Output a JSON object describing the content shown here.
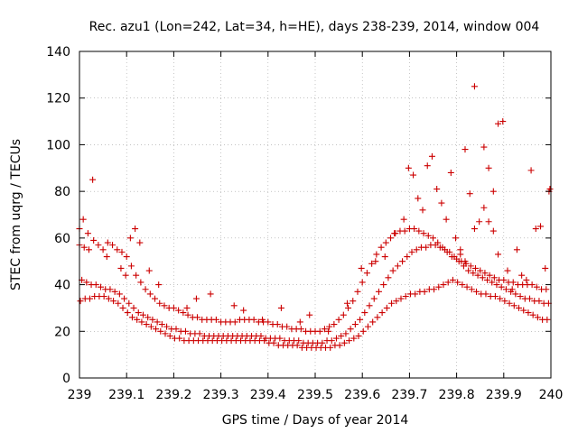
{
  "chart_data": {
    "type": "scatter",
    "title": "Rec. azu1 (Lon=242, Lat=34, h=HE), days 238-239, 2014, window 004",
    "xlabel": "GPS time / Days of year 2014",
    "ylabel": "STEC from uqrg / TECUs",
    "xlim": [
      239.0,
      240.0
    ],
    "ylim": [
      0,
      140
    ],
    "xticks": [
      239,
      239.1,
      239.2,
      239.3,
      239.4,
      239.5,
      239.6,
      239.7,
      239.8,
      239.9,
      240
    ],
    "xtick_labels": [
      "239",
      "239.1",
      "239.2",
      "239.3",
      "239.4",
      "239.5",
      "239.6",
      "239.7",
      "239.8",
      "239.9",
      "240"
    ],
    "yticks": [
      0,
      20,
      40,
      60,
      80,
      100,
      120,
      140
    ],
    "ytick_labels": [
      "0",
      "20",
      "40",
      "60",
      "80",
      "100",
      "120",
      "140"
    ],
    "grid": true,
    "marker": "plus",
    "color": "#cc0000",
    "series": [
      {
        "name": "",
        "x": [
          239.0,
          239.01,
          239.02,
          239.03,
          239.04,
          239.05,
          239.06,
          239.07,
          239.08,
          239.09,
          239.1,
          239.11,
          239.12,
          239.13,
          239.14,
          239.15,
          239.16,
          239.17,
          239.18,
          239.19,
          239.2,
          239.21,
          239.22,
          239.23,
          239.24,
          239.25,
          239.26,
          239.27,
          239.28,
          239.29,
          239.3,
          239.31,
          239.32,
          239.33,
          239.34,
          239.35,
          239.36,
          239.37,
          239.38,
          239.39,
          239.4,
          239.41,
          239.42,
          239.43,
          239.44,
          239.45,
          239.46,
          239.47,
          239.48,
          239.49,
          239.5,
          239.51,
          239.52,
          239.53,
          239.54,
          239.55,
          239.56,
          239.57,
          239.58,
          239.59,
          239.6,
          239.61,
          239.62,
          239.63,
          239.64,
          239.65,
          239.66,
          239.67,
          239.68,
          239.69,
          239.7,
          239.71,
          239.72,
          239.73,
          239.74,
          239.75,
          239.76,
          239.77,
          239.78,
          239.79,
          239.8,
          239.81,
          239.82,
          239.83,
          239.84,
          239.85,
          239.86,
          239.87,
          239.88,
          239.89,
          239.9,
          239.91,
          239.92,
          239.93,
          239.94,
          239.95,
          239.96,
          239.97,
          239.98,
          239.99
        ],
        "y": [
          57,
          56,
          55,
          59,
          57,
          55,
          58,
          57,
          55,
          54,
          52,
          48,
          44,
          41,
          38,
          36,
          34,
          32,
          31,
          30,
          30,
          29,
          28,
          27,
          26,
          26,
          25,
          25,
          25,
          25,
          24,
          24,
          24,
          24,
          25,
          25,
          25,
          25,
          24,
          24,
          24,
          23,
          23,
          22,
          22,
          21,
          21,
          21,
          20,
          20,
          20,
          20,
          21,
          22,
          23,
          25,
          27,
          30,
          33,
          37,
          41,
          45,
          49,
          53,
          56,
          58,
          60,
          62,
          63,
          63,
          64,
          64,
          63,
          62,
          61,
          60,
          58,
          56,
          54,
          52,
          51,
          50,
          49,
          48,
          47,
          46,
          45,
          44,
          43,
          42,
          42,
          41,
          41,
          40,
          40,
          40,
          40,
          39,
          38,
          38
        ]
      },
      {
        "name": "",
        "x": [
          239.005,
          239.015,
          239.025,
          239.035,
          239.045,
          239.055,
          239.065,
          239.075,
          239.085,
          239.095,
          239.105,
          239.115,
          239.125,
          239.135,
          239.145,
          239.155,
          239.165,
          239.175,
          239.185,
          239.195,
          239.205,
          239.215,
          239.225,
          239.235,
          239.245,
          239.255,
          239.265,
          239.275,
          239.285,
          239.295,
          239.305,
          239.315,
          239.325,
          239.335,
          239.345,
          239.355,
          239.365,
          239.375,
          239.385,
          239.395,
          239.405,
          239.415,
          239.425,
          239.435,
          239.445,
          239.455,
          239.465,
          239.475,
          239.485,
          239.495,
          239.505,
          239.515,
          239.525,
          239.535,
          239.545,
          239.555,
          239.565,
          239.575,
          239.585,
          239.595,
          239.605,
          239.615,
          239.625,
          239.635,
          239.645,
          239.655,
          239.665,
          239.675,
          239.685,
          239.695,
          239.705,
          239.715,
          239.725,
          239.735,
          239.745,
          239.755,
          239.765,
          239.775,
          239.785,
          239.795,
          239.805,
          239.815,
          239.825,
          239.835,
          239.845,
          239.855,
          239.865,
          239.875,
          239.885,
          239.895,
          239.905,
          239.915,
          239.925,
          239.935,
          239.945,
          239.955,
          239.965,
          239.975,
          239.985,
          239.995
        ],
        "y": [
          42,
          41,
          40,
          40,
          39,
          38,
          38,
          37,
          36,
          34,
          32,
          30,
          28,
          27,
          26,
          25,
          24,
          23,
          22,
          21,
          21,
          20,
          20,
          19,
          19,
          19,
          18,
          18,
          18,
          18,
          18,
          18,
          18,
          18,
          18,
          18,
          18,
          18,
          18,
          17,
          17,
          17,
          17,
          16,
          16,
          16,
          16,
          15,
          15,
          15,
          15,
          15,
          16,
          16,
          17,
          18,
          19,
          21,
          23,
          25,
          28,
          31,
          34,
          37,
          40,
          43,
          46,
          48,
          50,
          52,
          54,
          55,
          56,
          56,
          57,
          57,
          56,
          55,
          54,
          52,
          50,
          48,
          46,
          45,
          44,
          43,
          42,
          41,
          40,
          39,
          38,
          37,
          36,
          35,
          34,
          34,
          33,
          33,
          32,
          32
        ]
      },
      {
        "name": "",
        "x": [
          239.002,
          239.012,
          239.022,
          239.032,
          239.042,
          239.052,
          239.062,
          239.072,
          239.082,
          239.092,
          239.102,
          239.112,
          239.122,
          239.132,
          239.142,
          239.152,
          239.162,
          239.172,
          239.182,
          239.192,
          239.202,
          239.212,
          239.222,
          239.232,
          239.242,
          239.252,
          239.262,
          239.272,
          239.282,
          239.292,
          239.302,
          239.312,
          239.322,
          239.332,
          239.342,
          239.352,
          239.362,
          239.372,
          239.382,
          239.392,
          239.402,
          239.412,
          239.422,
          239.432,
          239.442,
          239.452,
          239.462,
          239.472,
          239.482,
          239.492,
          239.502,
          239.512,
          239.522,
          239.532,
          239.542,
          239.552,
          239.562,
          239.572,
          239.582,
          239.592,
          239.602,
          239.612,
          239.622,
          239.632,
          239.642,
          239.652,
          239.662,
          239.672,
          239.682,
          239.692,
          239.702,
          239.712,
          239.722,
          239.732,
          239.742,
          239.752,
          239.762,
          239.772,
          239.782,
          239.792,
          239.802,
          239.812,
          239.822,
          239.832,
          239.842,
          239.852,
          239.862,
          239.872,
          239.882,
          239.892,
          239.902,
          239.912,
          239.922,
          239.932,
          239.942,
          239.952,
          239.962,
          239.972,
          239.982,
          239.992
        ],
        "y": [
          33,
          34,
          34,
          35,
          35,
          35,
          34,
          33,
          32,
          30,
          28,
          26,
          25,
          24,
          23,
          22,
          21,
          20,
          19,
          18,
          17,
          17,
          16,
          16,
          16,
          16,
          16,
          16,
          16,
          16,
          16,
          16,
          16,
          16,
          16,
          16,
          16,
          16,
          16,
          16,
          15,
          15,
          14,
          14,
          14,
          14,
          14,
          13,
          13,
          13,
          13,
          13,
          13,
          13,
          14,
          14,
          15,
          16,
          17,
          18,
          20,
          22,
          24,
          26,
          28,
          30,
          32,
          33,
          34,
          35,
          36,
          36,
          37,
          37,
          38,
          38,
          39,
          40,
          41,
          42,
          41,
          40,
          39,
          38,
          37,
          36,
          36,
          35,
          35,
          34,
          33,
          32,
          31,
          30,
          29,
          28,
          27,
          26,
          25,
          25
        ]
      },
      {
        "name": "",
        "x": [
          239.0,
          239.008,
          239.018,
          239.028,
          239.058,
          239.088,
          239.098,
          239.108,
          239.118,
          239.128,
          239.148,
          239.168,
          239.228,
          239.248,
          239.278,
          239.328,
          239.348,
          239.388,
          239.428,
          239.468,
          239.488,
          239.528,
          239.568,
          239.598,
          239.628,
          239.648,
          239.668,
          239.688,
          239.698,
          239.708,
          239.718,
          239.728,
          239.738,
          239.748,
          239.758,
          239.768,
          239.778,
          239.788,
          239.798,
          239.808,
          239.818,
          239.828,
          239.838,
          239.848,
          239.858,
          239.868,
          239.878,
          239.888,
          239.898,
          239.908,
          239.918,
          239.928,
          239.938,
          239.948,
          239.958,
          239.968,
          239.978,
          239.988,
          239.996,
          239.998
        ],
        "y": [
          64,
          68,
          62,
          85,
          52,
          47,
          44,
          60,
          64,
          58,
          46,
          40,
          30,
          34,
          36,
          31,
          29,
          25,
          30,
          24,
          27,
          20,
          32,
          47,
          50,
          52,
          62,
          68,
          90,
          87,
          77,
          72,
          91,
          95,
          81,
          75,
          68,
          88,
          60,
          55,
          98,
          79,
          64,
          67,
          99,
          90,
          63,
          53,
          110,
          46,
          38,
          55,
          44,
          42,
          89,
          64,
          65,
          47,
          80,
          81
        ]
      },
      {
        "name": "",
        "x": [
          239.838,
          239.858,
          239.878,
          239.888,
          239.868,
          239.818,
          239.808
        ],
        "y": [
          125,
          73,
          80,
          109,
          67,
          50,
          53
        ]
      }
    ]
  }
}
